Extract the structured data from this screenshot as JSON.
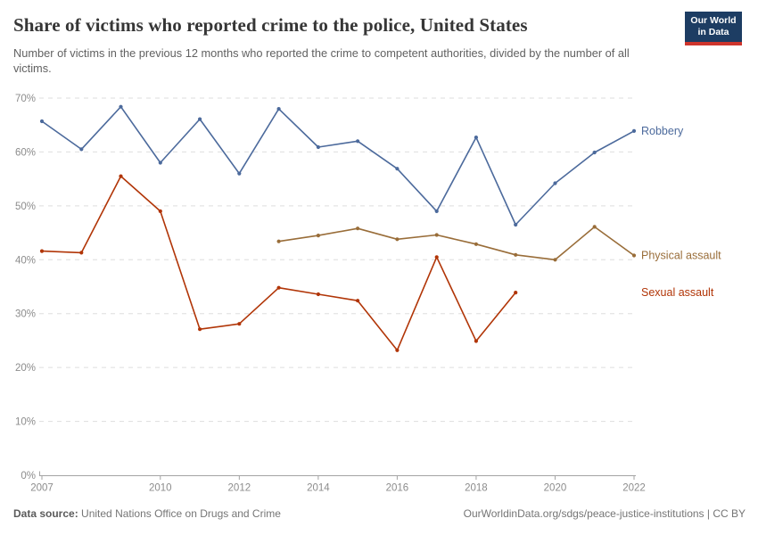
{
  "header": {
    "title": "Share of victims who reported crime to the police, United States",
    "subtitle": "Number of victims in the previous 12 months who reported the crime to competent authorities, divided by the number of all victims.",
    "logo": {
      "line1": "Our World",
      "line2": "in Data",
      "bg_color": "#1D3D63",
      "accent_color": "#CE352C"
    }
  },
  "chart_data": {
    "type": "line",
    "title": "Share of victims who reported crime to the police, United States",
    "xlabel": "",
    "ylabel": "",
    "xlim": [
      2007,
      2022
    ],
    "ylim": [
      0,
      70
    ],
    "x_ticks": [
      2007,
      2010,
      2012,
      2014,
      2016,
      2018,
      2020,
      2022
    ],
    "y_ticks": [
      0,
      10,
      20,
      30,
      40,
      50,
      60,
      70
    ],
    "y_tick_suffix": "%",
    "grid": "horizontal-dashed",
    "legend_position": "right-end-labels",
    "series": [
      {
        "name": "Robbery",
        "color": "#4C6A9C",
        "points": [
          [
            2007,
            65.7
          ],
          [
            2008,
            60.5
          ],
          [
            2009,
            68.4
          ],
          [
            2010,
            58.0
          ],
          [
            2011,
            66.1
          ],
          [
            2012,
            56.0
          ],
          [
            2013,
            68.0
          ],
          [
            2014,
            60.9
          ],
          [
            2015,
            62.0
          ],
          [
            2016,
            56.9
          ],
          [
            2017,
            49.0
          ],
          [
            2018,
            62.7
          ],
          [
            2019,
            46.5
          ],
          [
            2020,
            54.2
          ],
          [
            2021,
            59.9
          ],
          [
            2022,
            63.9
          ]
        ]
      },
      {
        "name": "Physical assault",
        "color": "#996D39",
        "points": [
          [
            2013,
            43.4
          ],
          [
            2014,
            44.5
          ],
          [
            2015,
            45.8
          ],
          [
            2016,
            43.8
          ],
          [
            2017,
            44.6
          ],
          [
            2018,
            42.9
          ],
          [
            2019,
            40.9
          ],
          [
            2020,
            40.0
          ],
          [
            2021,
            46.1
          ],
          [
            2022,
            40.8
          ]
        ]
      },
      {
        "name": "Sexual assault",
        "color": "#B13507",
        "points": [
          [
            2007,
            41.6
          ],
          [
            2008,
            41.3
          ],
          [
            2009,
            55.5
          ],
          [
            2010,
            49.0
          ],
          [
            2011,
            27.1
          ],
          [
            2012,
            28.1
          ],
          [
            2013,
            34.8
          ],
          [
            2014,
            33.6
          ],
          [
            2015,
            32.4
          ],
          [
            2016,
            23.2
          ],
          [
            2017,
            40.5
          ],
          [
            2018,
            24.9
          ],
          [
            2019,
            33.9
          ]
        ]
      }
    ],
    "style": {
      "grid_color": "#dedede",
      "axis_color": "#a3a3a3",
      "tick_label_color": "#8c8c8c"
    }
  },
  "footer": {
    "source_label": "Data source:",
    "source_value": "United Nations Office on Drugs and Crime",
    "credit": "OurWorldinData.org/sdgs/peace-justice-institutions | CC BY"
  }
}
